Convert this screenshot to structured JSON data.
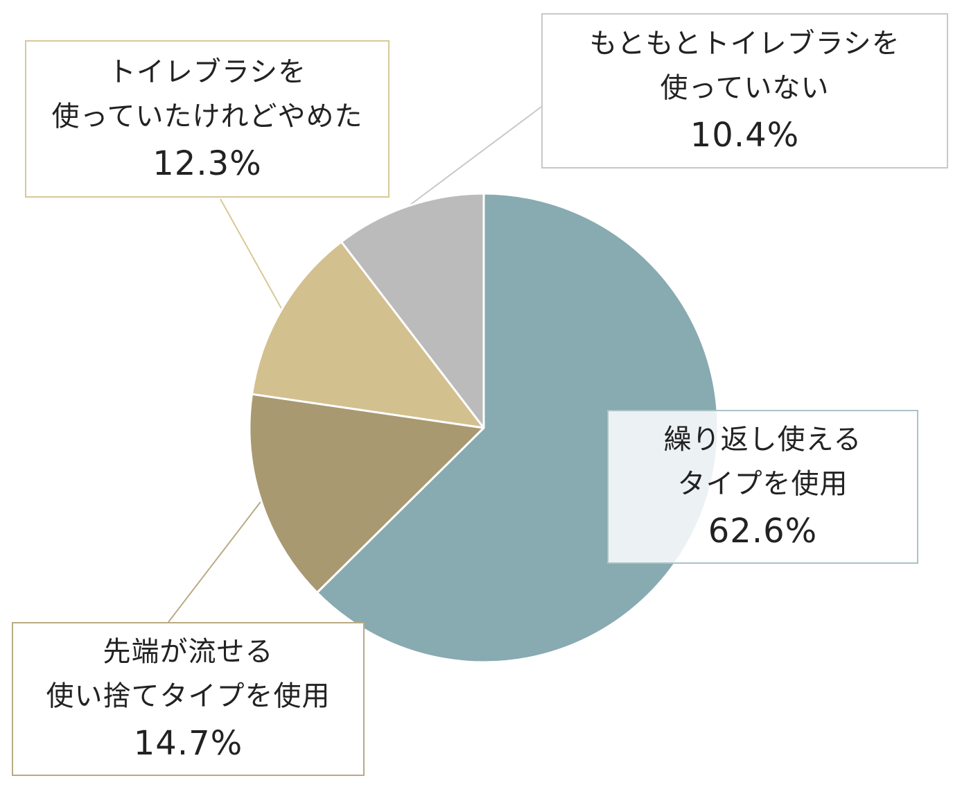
{
  "chart_data": {
    "type": "pie",
    "categories": [
      "繰り返し使えるタイプを使用",
      "先端が流せる使い捨てタイプを使用",
      "トイレブラシを使っていたけれどやめた",
      "もともとトイレブラシを使っていない"
    ],
    "values": [
      62.6,
      14.7,
      12.3,
      10.4
    ],
    "value_unit": "%",
    "start": "12 o'clock, clockwise",
    "colors": [
      "#88AAB1",
      "#A89971",
      "#D3C08F",
      "#BBBBBB"
    ],
    "labels": [
      {
        "lines": [
          "繰り返し使える",
          "タイプを使用"
        ],
        "value_text": "62.6%",
        "border_color": "#A9C2C6"
      },
      {
        "lines": [
          "先端が流せる",
          "使い捨てタイプを使用"
        ],
        "value_text": "14.7%",
        "border_color": "#B8AA84"
      },
      {
        "lines": [
          "トイレブラシを",
          "使っていたけれどやめた"
        ],
        "value_text": "12.3%",
        "border_color": "#D8C896"
      },
      {
        "lines": [
          "もともとトイレブラシを",
          "使っていない"
        ],
        "value_text": "10.4%",
        "border_color": "#C8C8C8"
      }
    ],
    "title": "",
    "legend": "none"
  }
}
